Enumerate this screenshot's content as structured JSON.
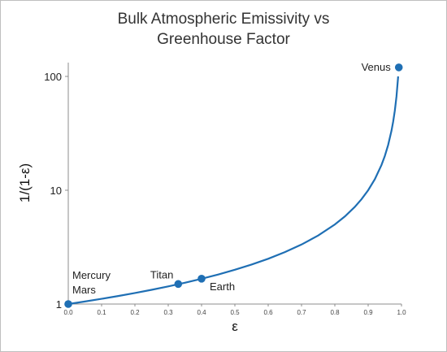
{
  "chart_data": {
    "type": "line",
    "title_lines": [
      "Bulk Atmospheric Emissivity vs",
      "Greenhouse Factor"
    ],
    "xlabel": "ε",
    "ylabel": "1/(1-ε)",
    "xlim": [
      0,
      1
    ],
    "ylim": [
      1,
      150
    ],
    "y_scale": "log",
    "grid": false,
    "x_ticks": [
      "0.0",
      "0.1",
      "0.2",
      "0.3",
      "0.4",
      "0.5",
      "0.6",
      "0.7",
      "0.8",
      "0.9",
      "1.0"
    ],
    "y_ticks": [
      "1",
      "10",
      "100"
    ],
    "curve_x": [
      0,
      0.05,
      0.1,
      0.15,
      0.2,
      0.25,
      0.3,
      0.35,
      0.4,
      0.45,
      0.5,
      0.55,
      0.6,
      0.65,
      0.7,
      0.75,
      0.8,
      0.83,
      0.86,
      0.88,
      0.9,
      0.92,
      0.94,
      0.95,
      0.96,
      0.97,
      0.975,
      0.98,
      0.985,
      0.99
    ],
    "points": [
      {
        "labels": [
          "Mercury",
          "Mars"
        ],
        "x": 0.0,
        "y": 1.0
      },
      {
        "labels": [
          "Titan"
        ],
        "x": 0.33,
        "y": 1.5
      },
      {
        "labels": [
          "Earth"
        ],
        "x": 0.4,
        "y": 1.67
      },
      {
        "labels": [
          "Venus"
        ],
        "x": 0.992,
        "y": 120
      }
    ],
    "line_color": "#1f6fb4",
    "marker_color": "#1f6fb4"
  }
}
